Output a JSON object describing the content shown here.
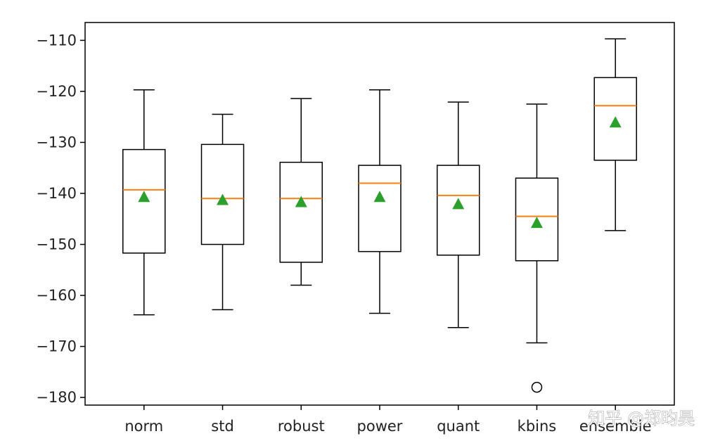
{
  "watermark": "知乎 @郑昀昊",
  "chart_data": {
    "type": "box",
    "title": "",
    "xlabel": "",
    "ylabel": "",
    "ylim": [
      -181.5,
      -106.5
    ],
    "yticks": [
      -110,
      -120,
      -130,
      -140,
      -150,
      -160,
      -170,
      -180
    ],
    "grid": false,
    "colors": {
      "box": "#000000",
      "median": "#ff7f0e",
      "mean": "#2ca02c",
      "outlier": "#000000"
    },
    "categories": [
      "norm",
      "std",
      "robust",
      "power",
      "quant",
      "kbins",
      "ensemble"
    ],
    "series": [
      {
        "category": "norm",
        "whislo": -163.8,
        "q1": -151.7,
        "median": -139.3,
        "q3": -131.4,
        "whishi": -119.7,
        "mean": -140.8,
        "fliers": []
      },
      {
        "category": "std",
        "whislo": -162.8,
        "q1": -150.0,
        "median": -141.0,
        "q3": -130.4,
        "whishi": -124.5,
        "mean": -141.4,
        "fliers": []
      },
      {
        "category": "robust",
        "whislo": -158.0,
        "q1": -153.5,
        "median": -141.0,
        "q3": -133.9,
        "whishi": -121.4,
        "mean": -141.8,
        "fliers": []
      },
      {
        "category": "power",
        "whislo": -163.5,
        "q1": -151.4,
        "median": -138.0,
        "q3": -134.5,
        "whishi": -119.7,
        "mean": -140.8,
        "fliers": []
      },
      {
        "category": "quant",
        "whislo": -166.3,
        "q1": -152.1,
        "median": -140.4,
        "q3": -134.5,
        "whishi": -122.1,
        "mean": -142.2,
        "fliers": []
      },
      {
        "category": "kbins",
        "whislo": -169.3,
        "q1": -153.2,
        "median": -144.5,
        "q3": -137.0,
        "whishi": -122.5,
        "mean": -145.9,
        "fliers": [
          -178.0
        ]
      },
      {
        "category": "ensemble",
        "whislo": -147.3,
        "q1": -133.5,
        "median": -122.8,
        "q3": -117.3,
        "whishi": -109.7,
        "mean": -126.2,
        "fliers": []
      }
    ]
  }
}
